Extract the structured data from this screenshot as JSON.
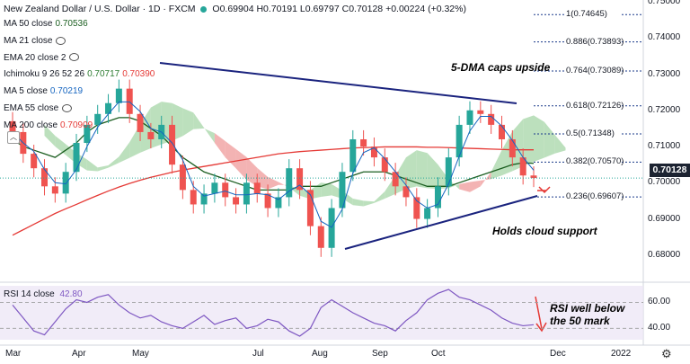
{
  "header": {
    "symbol": "New Zealand Dollar / U.S. Dollar · 1D · FXCM",
    "ohlc": "O0.69904 H0.70191 L0.69797 C0.70128 +0.00224 (+0.32%)"
  },
  "indicators": [
    {
      "name": "MA 50 close",
      "value": "0.70536",
      "color": "#1b5e20"
    },
    {
      "name": "MA 21 close",
      "value": "",
      "color": "#131722"
    },
    {
      "name": "EMA 20 close 2",
      "value": "",
      "color": "#131722"
    },
    {
      "name": "Ichimoku 9 26 52 26",
      "value": "0.70717",
      "value2": "0.70390",
      "color": "#2e7d32",
      "color2": "#e53935"
    },
    {
      "name": "MA 5 close",
      "value": "0.70219",
      "color": "#1565c0"
    },
    {
      "name": "EMA 55 close",
      "value": "",
      "color": "#131722"
    },
    {
      "name": "MA 200 close",
      "value": "0.70909",
      "color": "#e53935"
    }
  ],
  "annotations": {
    "upside": "5-DMA caps upside",
    "support": "Holds cloud support",
    "rsi_note_1": "RSI well below",
    "rsi_note_2": "the 50 mark"
  },
  "rsi": {
    "label": "RSI 14 close",
    "value": "42.80",
    "color": "#7e57c2"
  },
  "price_label": "0.70128",
  "colors": {
    "up": "#26a69a",
    "down": "#ef5350",
    "trendline": "#1a237e",
    "fib": "#1a3a8a",
    "cloud_bull": "#a5d6a7",
    "cloud_bear": "#ef9a9a"
  },
  "chart_data": {
    "type": "line",
    "title": "New Zealand Dollar / U.S. Dollar · 1D · FXCM",
    "x_ticks": [
      "Mar",
      "Apr",
      "May",
      "Jul",
      "Aug",
      "Sep",
      "Oct",
      "Dec",
      "2022"
    ],
    "y_ticks": [
      "0.75000",
      "0.74000",
      "0.73000",
      "0.72000",
      "0.71000",
      "0.70000",
      "0.69000",
      "0.68000"
    ],
    "ylim": [
      0.673,
      0.7505
    ],
    "fib_levels": [
      {
        "label": "1(0.74645)",
        "value": 0.74645
      },
      {
        "label": "0.886(0.73893)",
        "value": 0.73893
      },
      {
        "label": "0.764(0.73089)",
        "value": 0.73089
      },
      {
        "label": "0.618(0.72126)",
        "value": 0.72126
      },
      {
        "label": "0.5(0.71348)",
        "value": 0.71348
      },
      {
        "label": "0.382(0.70570)",
        "value": 0.7057
      },
      {
        "label": "0.236(0.69607)",
        "value": 0.69607
      }
    ],
    "series": [
      {
        "name": "Close",
        "values": [
          0.714,
          0.708,
          0.704,
          0.699,
          0.697,
          0.703,
          0.711,
          0.716,
          0.719,
          0.722,
          0.726,
          0.719,
          0.714,
          0.712,
          0.716,
          0.705,
          0.698,
          0.694,
          0.697,
          0.7,
          0.696,
          0.694,
          0.7,
          0.697,
          0.693,
          0.696,
          0.704,
          0.698,
          0.688,
          0.682,
          0.693,
          0.703,
          0.712,
          0.71,
          0.707,
          0.703,
          0.699,
          0.696,
          0.69,
          0.693,
          0.699,
          0.707,
          0.716,
          0.72,
          0.719,
          0.716,
          0.712,
          0.707,
          0.702,
          0.7013
        ]
      },
      {
        "name": "MA 50 close",
        "values": [
          0.712,
          0.71,
          0.709,
          0.708,
          0.707,
          0.709,
          0.711,
          0.714,
          0.716,
          0.717,
          0.718,
          0.718,
          0.717,
          0.715,
          0.713,
          0.71,
          0.707,
          0.705,
          0.703,
          0.702,
          0.701,
          0.7,
          0.699,
          0.698,
          0.698,
          0.698,
          0.698,
          0.699,
          0.699,
          0.699,
          0.7,
          0.701,
          0.702,
          0.703,
          0.703,
          0.703,
          0.702,
          0.701,
          0.7,
          0.699,
          0.699,
          0.699,
          0.7,
          0.701,
          0.702,
          0.703,
          0.704,
          0.705,
          0.7055,
          0.70536
        ]
      },
      {
        "name": "MA 200 close",
        "values": [
          0.6855,
          0.687,
          0.6885,
          0.69,
          0.6915,
          0.6928,
          0.694,
          0.6953,
          0.6965,
          0.6977,
          0.6988,
          0.6998,
          0.7007,
          0.7015,
          0.7022,
          0.7029,
          0.7035,
          0.704,
          0.7045,
          0.705,
          0.7055,
          0.706,
          0.7065,
          0.707,
          0.7075,
          0.708,
          0.7083,
          0.7086,
          0.7088,
          0.709,
          0.7092,
          0.7094,
          0.7096,
          0.7097,
          0.7098,
          0.7099,
          0.7099,
          0.7099,
          0.7099,
          0.7098,
          0.7098,
          0.7097,
          0.7096,
          0.7095,
          0.7094,
          0.7093,
          0.7092,
          0.7091,
          0.7091,
          0.70909
        ]
      },
      {
        "name": "RSI 14 close",
        "values": [
          58,
          48,
          38,
          35,
          45,
          55,
          62,
          60,
          64,
          66,
          58,
          52,
          48,
          50,
          45,
          42,
          40,
          45,
          50,
          43,
          46,
          48,
          40,
          42,
          47,
          45,
          38,
          34,
          40,
          56,
          62,
          57,
          52,
          48,
          44,
          42,
          38,
          46,
          52,
          62,
          67,
          70,
          64,
          62,
          58,
          54,
          48,
          44,
          42,
          42.8
        ]
      }
    ],
    "rsi_ylim": [
      34,
      70
    ],
    "rsi_ticks": [
      "60.00",
      "40.00"
    ]
  }
}
